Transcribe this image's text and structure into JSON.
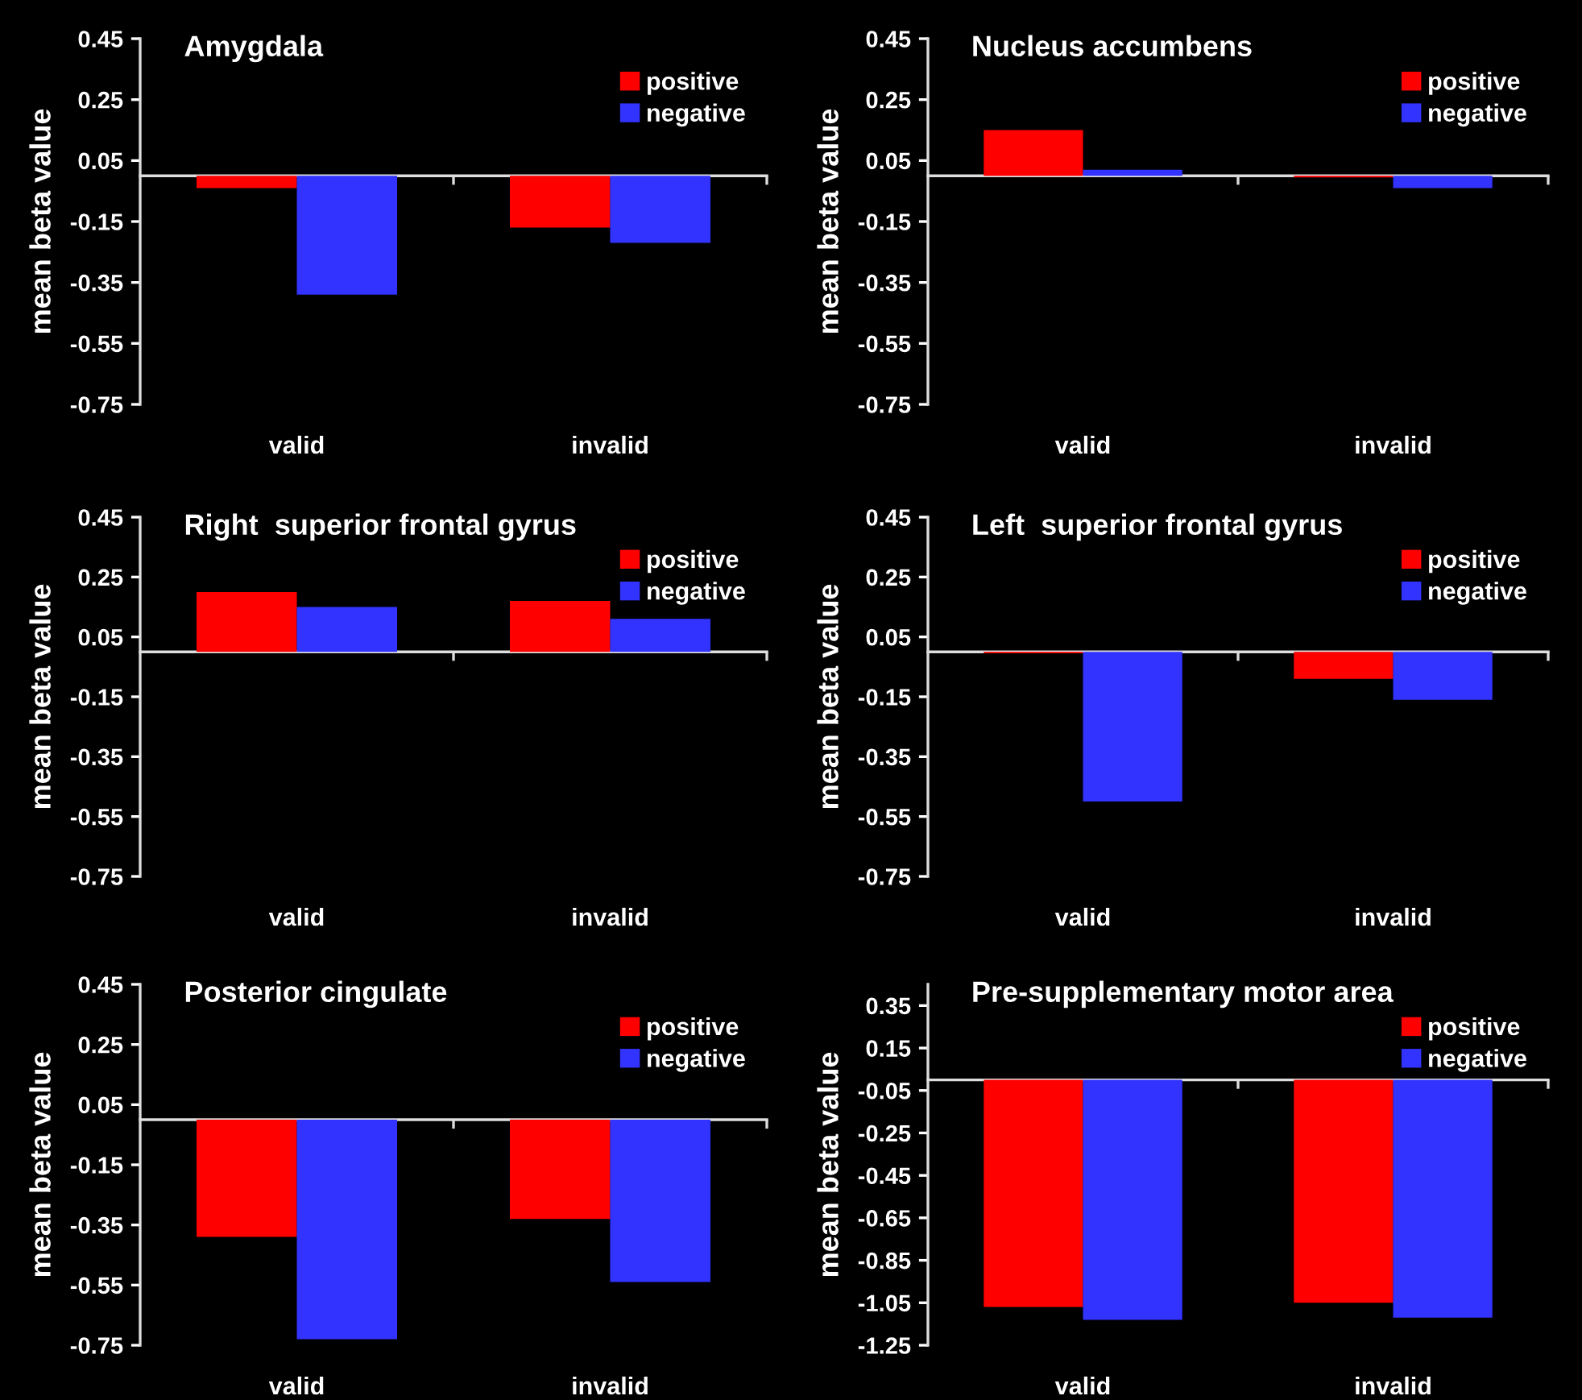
{
  "chart_data": [
    {
      "type": "bar",
      "title": "Amygdala",
      "ylabel": "mean beta value",
      "categories": [
        "valid",
        "invalid"
      ],
      "series": [
        {
          "name": "positive",
          "color": "#ff0000",
          "values": [
            -0.04,
            -0.17
          ]
        },
        {
          "name": "negative",
          "color": "#3333ff",
          "values": [
            -0.39,
            -0.22
          ]
        }
      ],
      "ylim": [
        -0.75,
        0.45
      ],
      "yticks": [
        0.45,
        0.25,
        0.05,
        -0.15,
        -0.35,
        -0.55,
        -0.75
      ],
      "legend": "top right"
    },
    {
      "type": "bar",
      "title": "Nucleus accumbens",
      "ylabel": "mean beta value",
      "categories": [
        "valid",
        "invalid"
      ],
      "series": [
        {
          "name": "positive",
          "color": "#ff0000",
          "values": [
            0.15,
            -0.005
          ]
        },
        {
          "name": "negative",
          "color": "#3333ff",
          "values": [
            0.02,
            -0.04
          ]
        }
      ],
      "ylim": [
        -0.75,
        0.45
      ],
      "yticks": [
        0.45,
        0.25,
        0.05,
        -0.15,
        -0.35,
        -0.55,
        -0.75
      ],
      "legend": "top right"
    },
    {
      "type": "bar",
      "title": "Right  superior frontal gyrus",
      "ylabel": "mean beta value",
      "categories": [
        "valid",
        "invalid"
      ],
      "series": [
        {
          "name": "positive",
          "color": "#ff0000",
          "values": [
            0.2,
            0.17
          ]
        },
        {
          "name": "negative",
          "color": "#3333ff",
          "values": [
            0.15,
            0.11
          ]
        }
      ],
      "ylim": [
        -0.75,
        0.45
      ],
      "yticks": [
        0.45,
        0.25,
        0.05,
        -0.15,
        -0.35,
        -0.55,
        -0.75
      ],
      "legend": "top right"
    },
    {
      "type": "bar",
      "title": "Left  superior frontal gyrus",
      "ylabel": "mean beta value",
      "categories": [
        "valid",
        "invalid"
      ],
      "series": [
        {
          "name": "positive",
          "color": "#ff0000",
          "values": [
            -0.005,
            -0.09
          ]
        },
        {
          "name": "negative",
          "color": "#3333ff",
          "values": [
            -0.5,
            -0.16
          ]
        }
      ],
      "ylim": [
        -0.75,
        0.45
      ],
      "yticks": [
        0.45,
        0.25,
        0.05,
        -0.15,
        -0.35,
        -0.55,
        -0.75
      ],
      "legend": "top right"
    },
    {
      "type": "bar",
      "title": "Posterior cingulate",
      "ylabel": "mean beta value",
      "categories": [
        "valid",
        "invalid"
      ],
      "series": [
        {
          "name": "positive",
          "color": "#ff0000",
          "values": [
            -0.39,
            -0.33
          ]
        },
        {
          "name": "negative",
          "color": "#3333ff",
          "values": [
            -0.73,
            -0.54
          ]
        }
      ],
      "ylim": [
        -0.75,
        0.45
      ],
      "yticks": [
        0.45,
        0.25,
        0.05,
        -0.15,
        -0.35,
        -0.55,
        -0.75
      ],
      "legend": "top right"
    },
    {
      "type": "bar",
      "title": "Pre-supplementary motor area",
      "ylabel": "mean beta value",
      "categories": [
        "valid",
        "invalid"
      ],
      "series": [
        {
          "name": "positive",
          "color": "#ff0000",
          "values": [
            -1.07,
            -1.05
          ]
        },
        {
          "name": "negative",
          "color": "#3333ff",
          "values": [
            -1.13,
            -1.12
          ]
        }
      ],
      "ylim": [
        -1.25,
        0.45
      ],
      "yticks": [
        0.35,
        0.15,
        -0.05,
        -0.25,
        -0.45,
        -0.65,
        -0.85,
        -1.05,
        -1.25
      ],
      "legend": "top right"
    }
  ]
}
